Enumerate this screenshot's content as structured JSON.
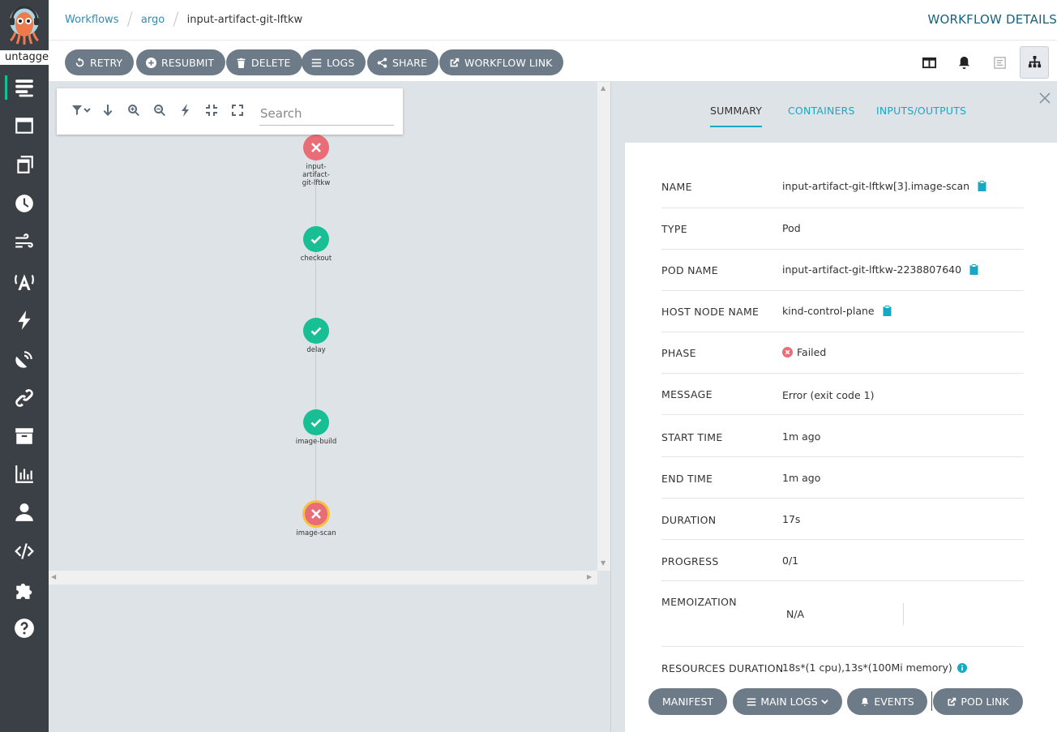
{
  "nav": {
    "user_label": "untagged",
    "items": [
      "workflows-icon",
      "workflow-templates-icon",
      "cluster-workflow-templates-icon",
      "cron-workflows-icon",
      "event-flow-icon",
      "event-sources-icon",
      "sensors-icon",
      "event-flows-icon",
      "archived-workflows-icon",
      "reports-icon",
      "user-icon",
      "api-docs-icon",
      "plugins-icon",
      "help-icon"
    ]
  },
  "header": {
    "breadcrumbs": [
      "Workflows",
      "argo"
    ],
    "current": "input-artifact-git-lftkw",
    "title": "WORKFLOW DETAILS"
  },
  "toolbar": {
    "retry": "RETRY",
    "resubmit": "RESUBMIT",
    "delete": "DELETE",
    "logs": "LOGS",
    "share": "SHARE",
    "workflow_link": "WORKFLOW LINK"
  },
  "graph": {
    "search_placeholder": "Search",
    "nodes": [
      {
        "label": "input-artifact-git-lftkw",
        "phase": "Failed"
      },
      {
        "label": "checkout",
        "phase": "Succeeded"
      },
      {
        "label": "delay",
        "phase": "Succeeded"
      },
      {
        "label": "image-build",
        "phase": "Succeeded"
      },
      {
        "label": "image-scan",
        "phase": "Failed",
        "selected": true
      }
    ]
  },
  "panel": {
    "tabs": [
      "SUMMARY",
      "CONTAINERS",
      "INPUTS/OUTPUTS"
    ],
    "active_tab": "SUMMARY",
    "rows": {
      "name": {
        "k": "NAME",
        "v": "input-artifact-git-lftkw[3].image-scan"
      },
      "type": {
        "k": "TYPE",
        "v": "Pod"
      },
      "pod_name": {
        "k": "POD NAME",
        "v": "input-artifact-git-lftkw-2238807640"
      },
      "host_node": {
        "k": "HOST NODE NAME",
        "v": "kind-control-plane"
      },
      "phase": {
        "k": "PHASE",
        "v": "Failed"
      },
      "message": {
        "k": "MESSAGE",
        "v": "Error (exit code 1)"
      },
      "start": {
        "k": "START TIME",
        "v": "1m ago"
      },
      "end": {
        "k": "END TIME",
        "v": "1m ago"
      },
      "duration": {
        "k": "DURATION",
        "v": "17s"
      },
      "progress": {
        "k": "PROGRESS",
        "v": "0/1"
      },
      "memo": {
        "k": "MEMOIZATION",
        "v": "N/A"
      },
      "resources": {
        "k": "RESOURCES DURATION",
        "v": "18s*(1 cpu),13s*(100Mi memory)"
      }
    },
    "buttons": {
      "manifest": "MANIFEST",
      "main_logs": "MAIN LOGS",
      "events": "EVENTS",
      "pod_link": "POD LINK"
    }
  },
  "colors": {
    "sidebar": "#3b4046",
    "accent": "#18be94",
    "link": "#18a8c4",
    "failed": "#e96d76",
    "button": "#6d7b88"
  }
}
